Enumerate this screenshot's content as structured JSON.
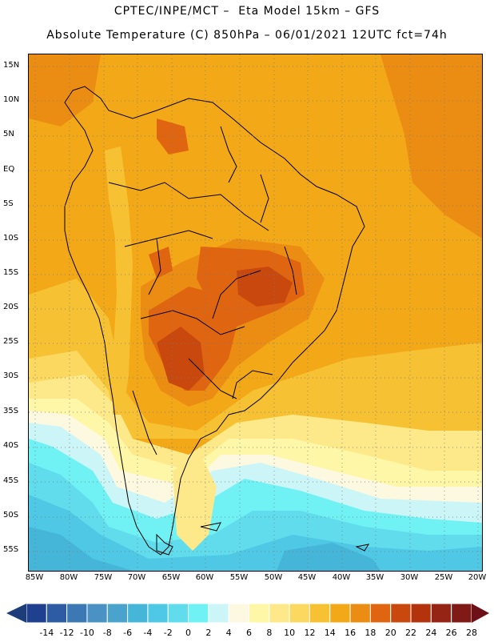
{
  "header": {
    "line1": "CPTEC/INPE/MCT –  Eta Model 15km – GFS",
    "line2": "Absolute Temperature (C) 850hPa – 06/01/2021 12UTC fct=74h"
  },
  "map": {
    "lat_labels": [
      "15N",
      "10N",
      "5N",
      "EQ",
      "5S",
      "10S",
      "15S",
      "20S",
      "25S",
      "30S",
      "35S",
      "40S",
      "45S",
      "50S",
      "55S"
    ],
    "lon_labels": [
      "85W",
      "80W",
      "75W",
      "70W",
      "65W",
      "60W",
      "55W",
      "50W",
      "45W",
      "40W",
      "35W",
      "30W",
      "25W",
      "20W"
    ]
  },
  "legend": {
    "labels": [
      "-14",
      "-12",
      "-10",
      "-8",
      "-6",
      "-4",
      "-2",
      "0",
      "2",
      "4",
      "6",
      "8",
      "10",
      "12",
      "14",
      "16",
      "18",
      "20",
      "22",
      "24",
      "26",
      "28"
    ],
    "colors": [
      "#1f3f8f",
      "#2d5ca4",
      "#3b78b4",
      "#4a91c4",
      "#4aa3cc",
      "#45b5d8",
      "#4ec8e4",
      "#60dced",
      "#70f2f5",
      "#ccf5f8",
      "#fdf8e0",
      "#fff7a8",
      "#fee98a",
      "#fbd860",
      "#f6c233",
      "#f3a818",
      "#ec8d13",
      "#df6510",
      "#c9480e",
      "#b3340c",
      "#952414",
      "#7f1a16"
    ]
  }
}
